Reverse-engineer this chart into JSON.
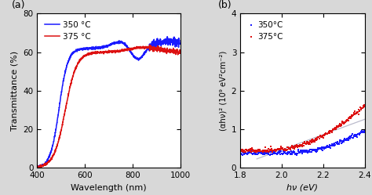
{
  "panel_a": {
    "title": "(a)",
    "xlabel": "Wavelength (nm)",
    "ylabel": "Transmittance (%)",
    "xlim": [
      400,
      1000
    ],
    "ylim": [
      0,
      80
    ],
    "xticks": [
      400,
      600,
      800,
      1000
    ],
    "yticks": [
      0,
      20,
      40,
      60,
      80
    ],
    "legend_labels": [
      "350 °C",
      "375 °C"
    ],
    "line_colors": [
      "#1a1aff",
      "#dd1111"
    ]
  },
  "panel_b": {
    "title": "(b)",
    "xlabel": "hν (eV)",
    "ylabel": "(αhν)² (10⁹ eV²cm⁻²)",
    "xlim": [
      1.8,
      2.4
    ],
    "ylim": [
      0,
      4
    ],
    "xticks": [
      1.8,
      2.0,
      2.2,
      2.4
    ],
    "yticks": [
      0,
      1,
      2,
      3,
      4
    ],
    "legend_labels": [
      "350°C",
      "375°C"
    ],
    "dot_colors": [
      "#1a1aff",
      "#dd1111"
    ],
    "linfit_color": "#bbbbcc"
  },
  "bg_color": "#ffffff",
  "fig_bg_color": "#d8d8d8"
}
